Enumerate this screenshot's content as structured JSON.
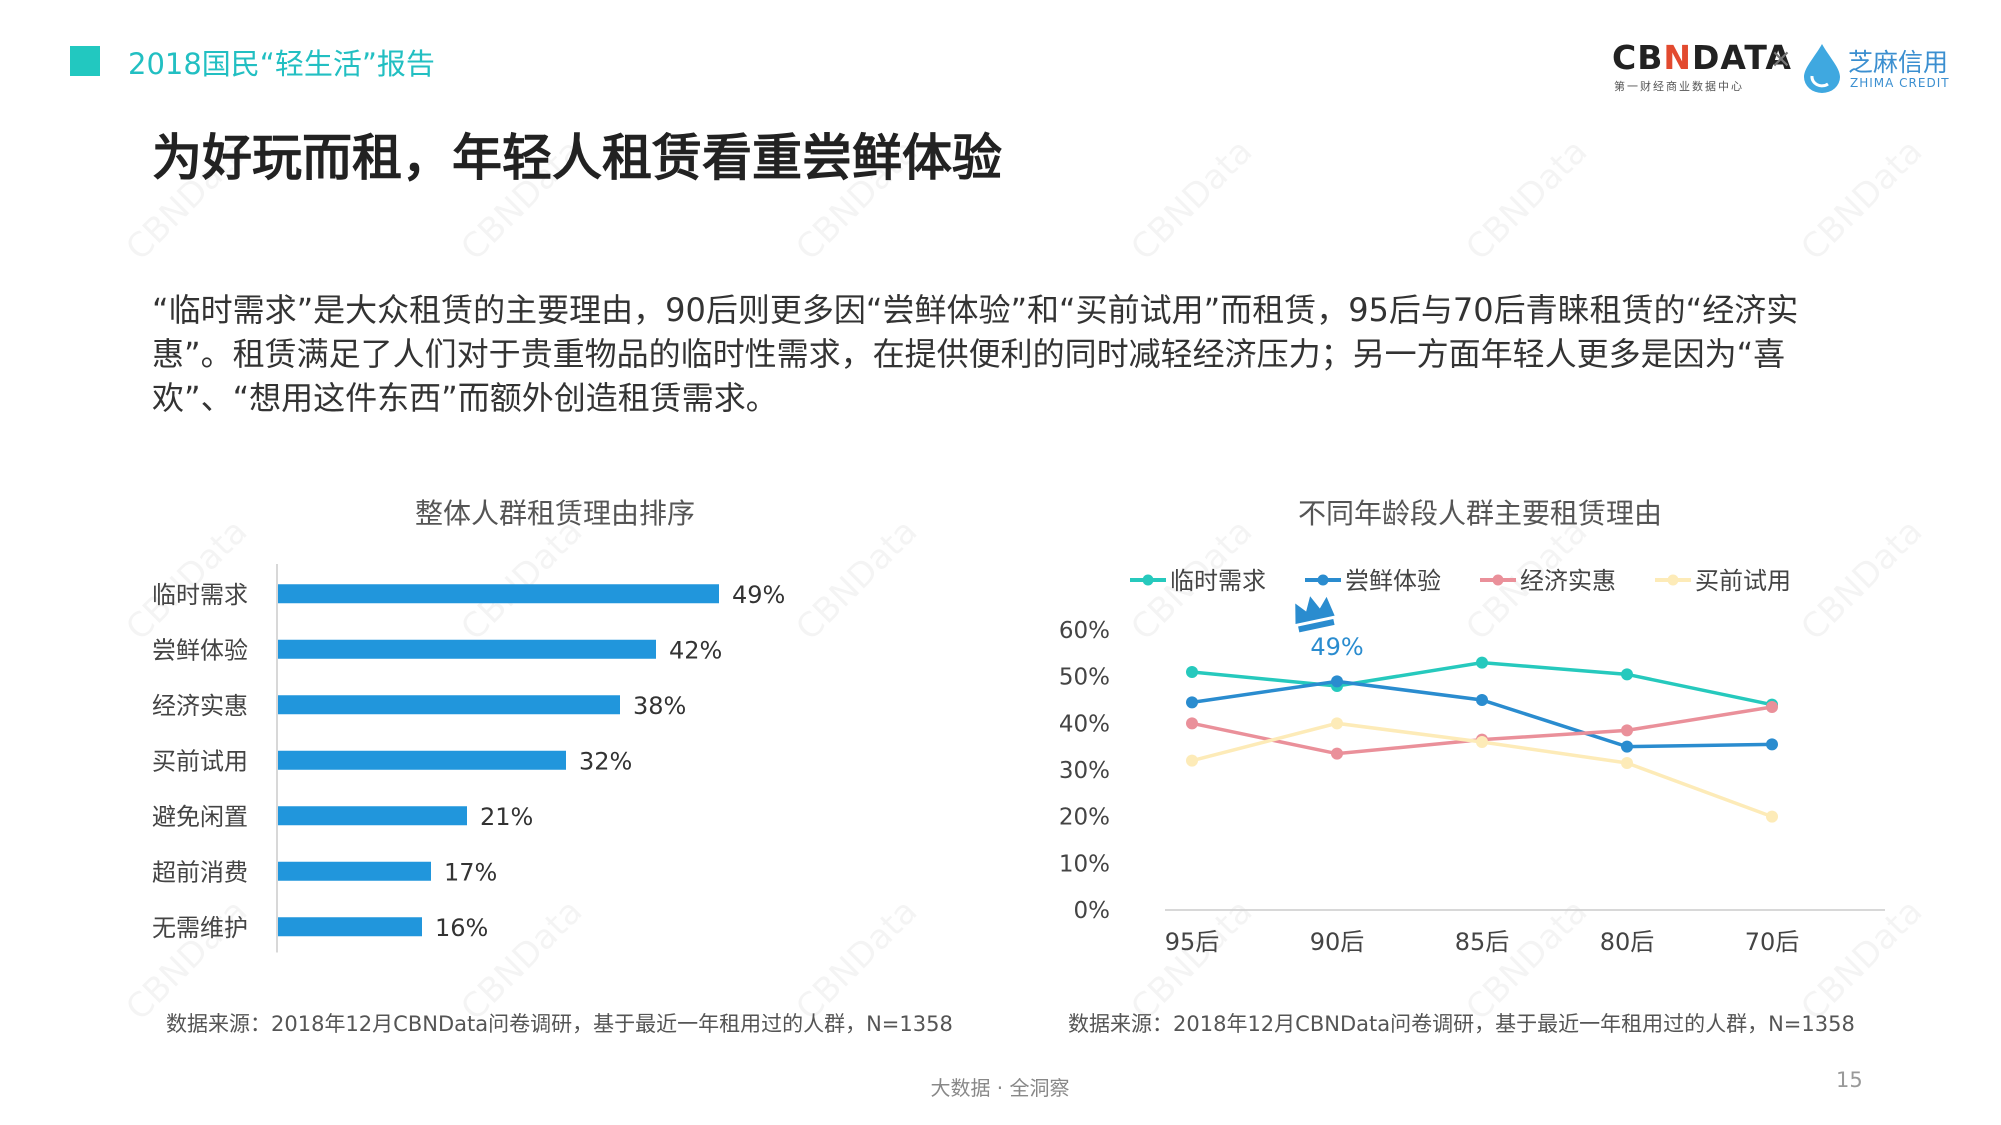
{
  "header": {
    "report_title": "2018国民“轻生活”报告",
    "brand_primary_a": "CB",
    "brand_primary_accent": "N",
    "brand_primary_b": "DATA",
    "brand_primary_sub": "第一财经商业数据中心",
    "brand_times": "×",
    "brand_secondary": "芝麻信用",
    "brand_secondary_sub": "ZHIMA CREDIT",
    "watermark_text": "CBNData"
  },
  "main": {
    "title": "为好玩而租，年轻人租赁看重尝鲜体验",
    "summary": "“临时需求”是大众租赁的主要理由，90后则更多因“尝鲜体验”和“买前试用”而租赁，95后与70后青睐租赁的“经济实惠”。租赁满足了人们对于贵重物品的临时性需求，在提供便利的同时减轻经济压力；另一方面年轻人更多是因为“喜欢”、“想用这件东西”而额外创造租赁需求。"
  },
  "chart_data": [
    {
      "type": "bar",
      "orientation": "horizontal",
      "title": "整体人群租赁理由排序",
      "categories": [
        "临时需求",
        "尝鲜体验",
        "经济实惠",
        "买前试用",
        "避免闲置",
        "超前消费",
        "无需维护"
      ],
      "values": [
        49,
        42,
        38,
        32,
        21,
        17,
        16
      ],
      "value_labels": [
        "49%",
        "42%",
        "38%",
        "32%",
        "21%",
        "17%",
        "16%"
      ],
      "color": "#2196dc",
      "xlim": [
        0,
        60
      ],
      "grid": false
    },
    {
      "type": "line",
      "title": "不同年龄段人群主要租赁理由",
      "x": [
        "95后",
        "90后",
        "85后",
        "80后",
        "70后"
      ],
      "series": [
        {
          "name": "临时需求",
          "color": "#26c9bd",
          "values": [
            51,
            48,
            53,
            50.5,
            44
          ]
        },
        {
          "name": "尝鲜体验",
          "color": "#2a8ccf",
          "values": [
            44.5,
            49,
            45,
            35,
            35.5
          ]
        },
        {
          "name": "经济实惠",
          "color": "#ea909a",
          "values": [
            40,
            33.5,
            36.5,
            38.5,
            43.5
          ]
        },
        {
          "name": "买前试用",
          "color": "#fdebb8",
          "values": [
            32,
            40,
            36,
            31.5,
            20
          ]
        }
      ],
      "ylim": [
        0,
        60
      ],
      "yticks": [
        "0%",
        "10%",
        "20%",
        "30%",
        "40%",
        "50%",
        "60%"
      ],
      "legend": "top",
      "grid": false,
      "annotation": {
        "text": "49%",
        "x": "90后",
        "series": "尝鲜体验",
        "icon": "crown-icon",
        "color": "#2a8ccf"
      }
    }
  ],
  "sources": {
    "left": "数据来源：2018年12月CBNData问卷调研，基于最近一年租用过的人群，N=1358",
    "right": "数据来源：2018年12月CBNData问卷调研，基于最近一年租用过的人群，N=1358"
  },
  "footer": {
    "center": "大数据 · 全洞察",
    "page": "15"
  }
}
